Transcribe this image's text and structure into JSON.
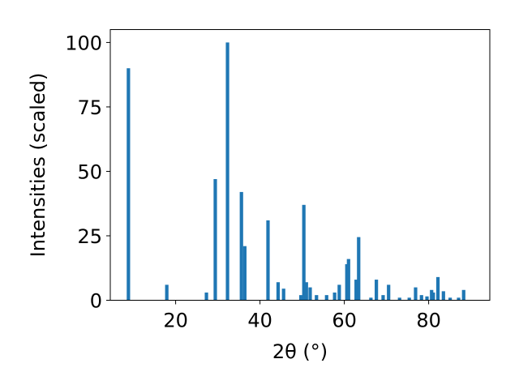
{
  "chart_data": {
    "type": "bar",
    "title": "",
    "xlabel": "2θ (°)",
    "ylabel": "Intensities (scaled)",
    "xlim": [
      4.5,
      94.5
    ],
    "ylim": [
      0,
      105
    ],
    "xticks": [
      20,
      40,
      60,
      80
    ],
    "yticks": [
      0,
      25,
      50,
      75,
      100
    ],
    "grid": false,
    "legend": "none",
    "bar_color": "#1f77b4",
    "x": [
      8.8,
      17.9,
      27.3,
      29.4,
      32.3,
      35.6,
      36.4,
      41.9,
      44.3,
      45.6,
      49.7,
      50.4,
      51.0,
      51.9,
      53.4,
      55.8,
      57.7,
      58.8,
      60.6,
      61.0,
      62.8,
      63.4,
      66.3,
      67.6,
      69.2,
      70.5,
      73.1,
      75.4,
      76.9,
      78.3,
      79.6,
      80.7,
      81.1,
      82.2,
      83.5,
      85.1,
      87.1,
      88.3
    ],
    "values": [
      90,
      6,
      3,
      47,
      100,
      42,
      21,
      31,
      7,
      4.5,
      2,
      37,
      7,
      5,
      2,
      2,
      3,
      6,
      14,
      16,
      8,
      24.5,
      1,
      8,
      2,
      6,
      1,
      1,
      5,
      2,
      1.5,
      4,
      3,
      9,
      3.5,
      1,
      1,
      4
    ]
  }
}
